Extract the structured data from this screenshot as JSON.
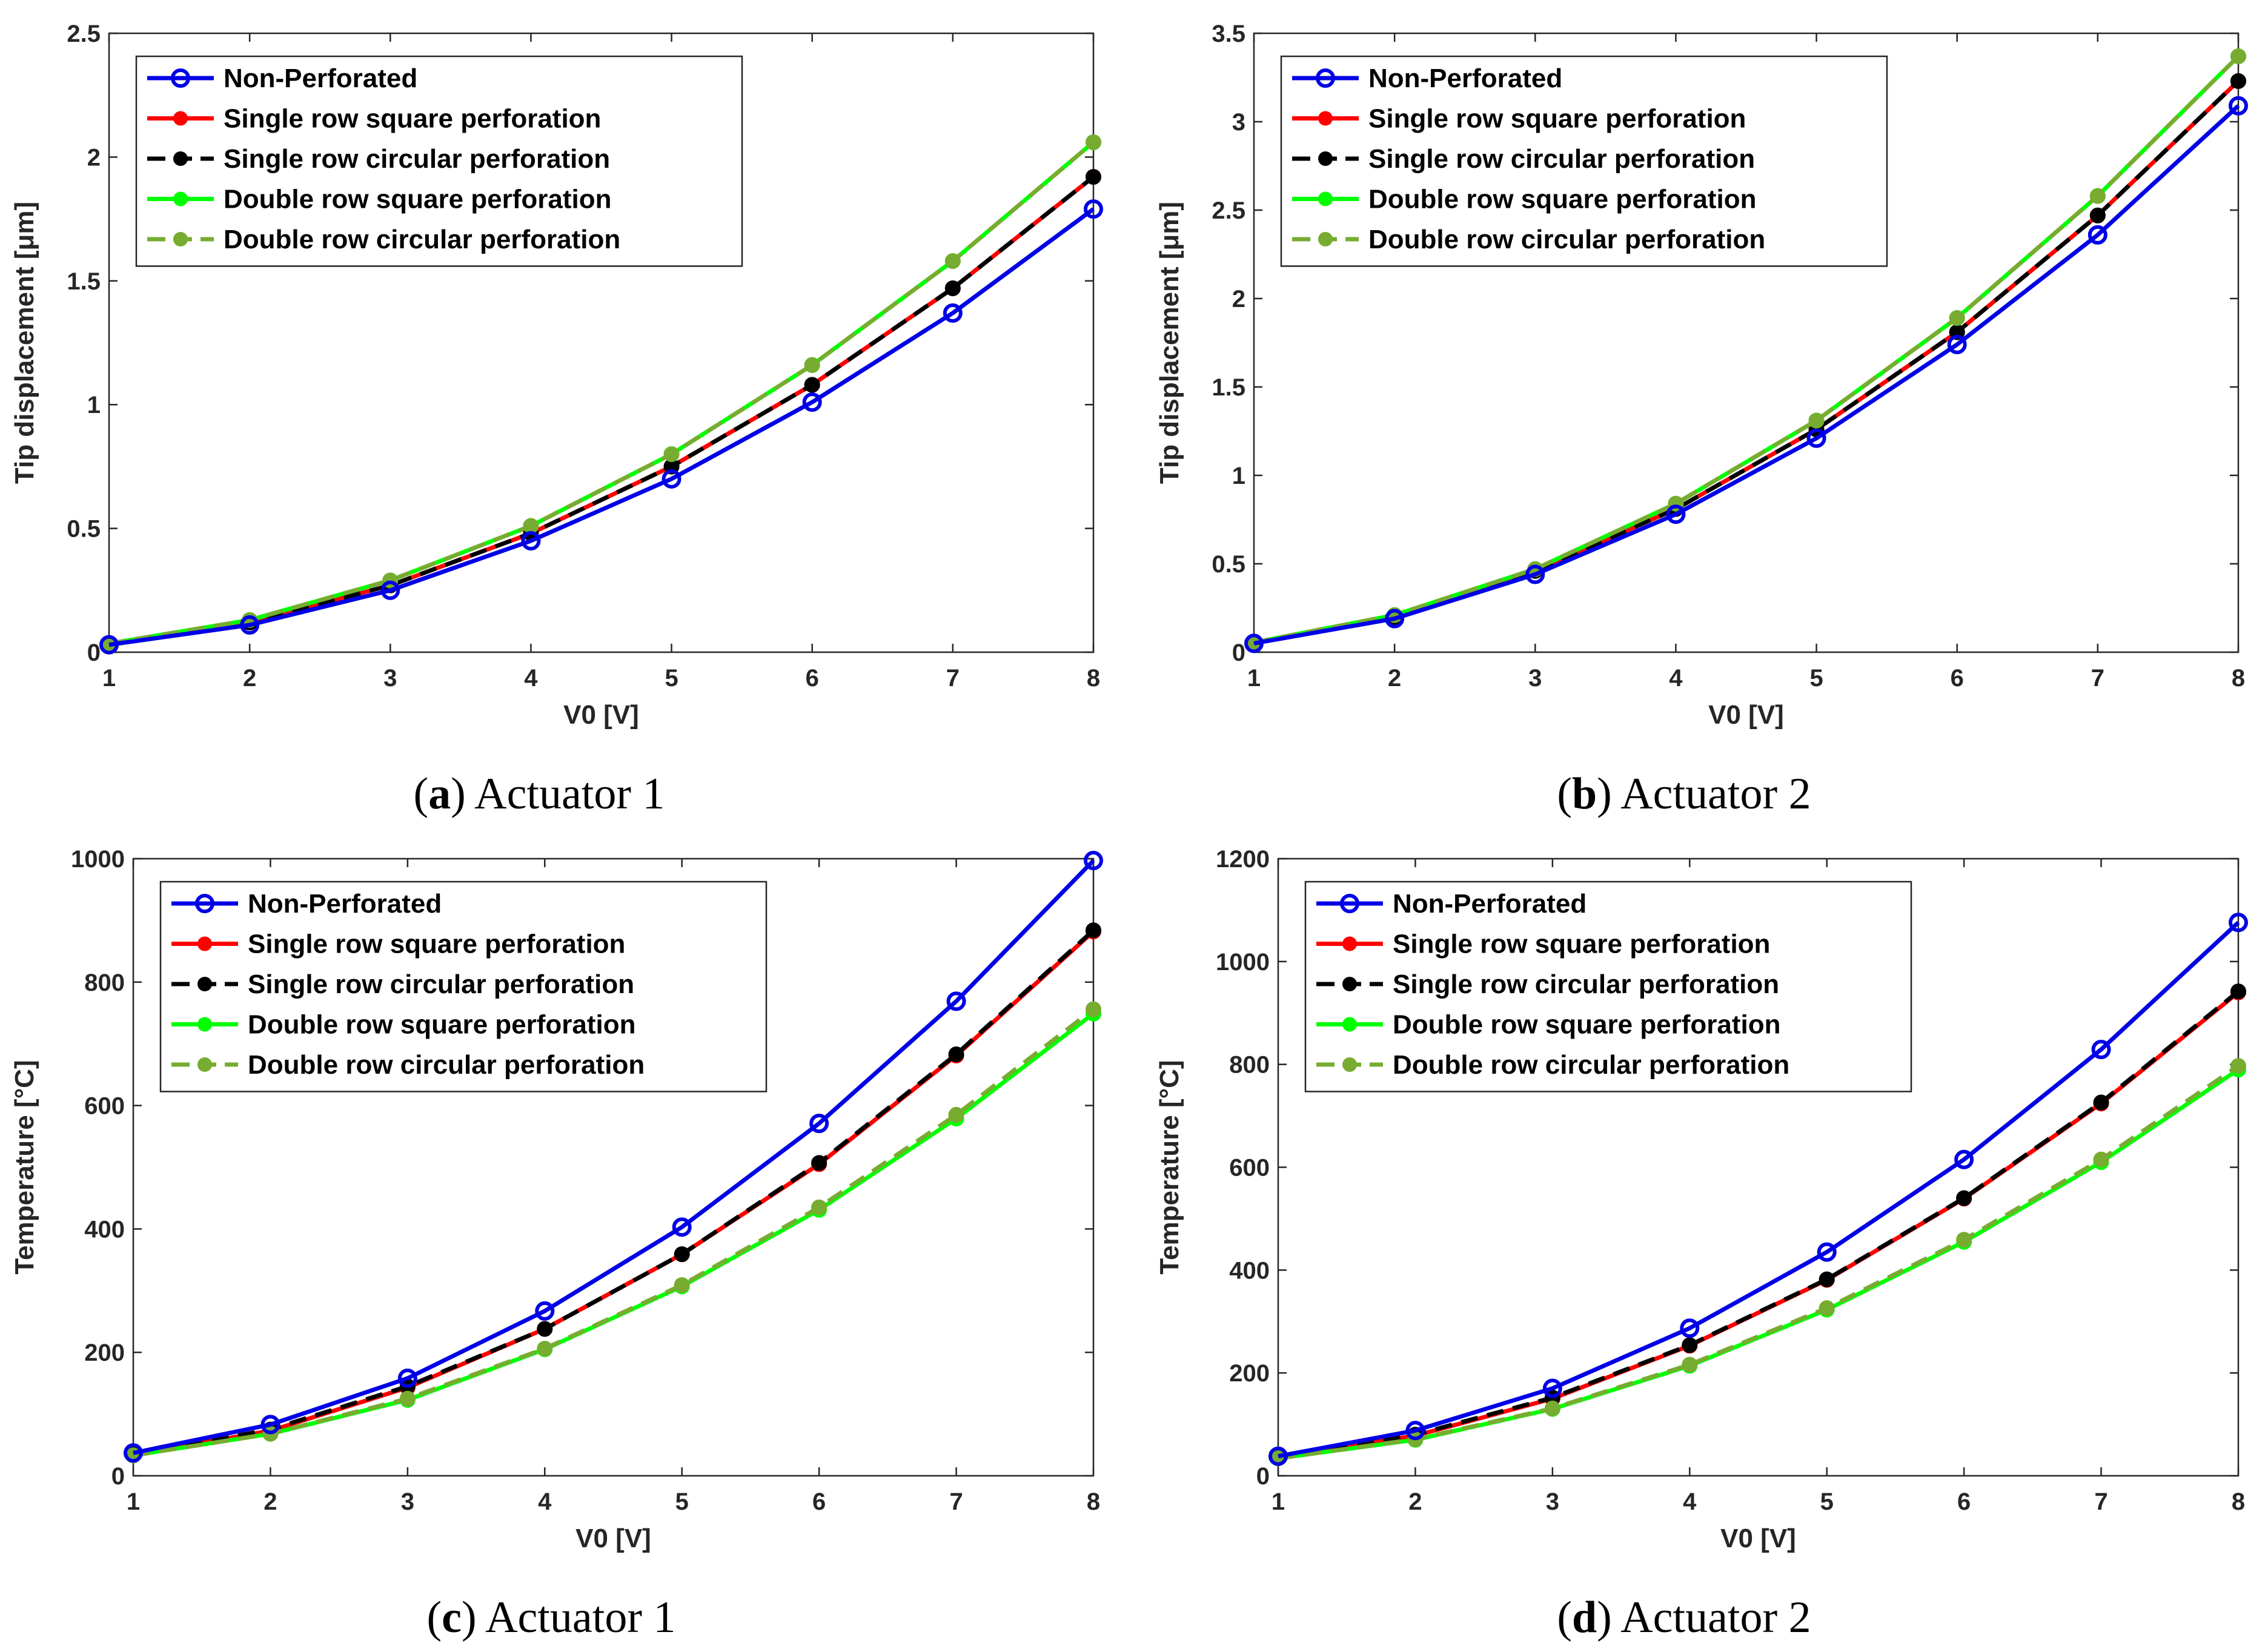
{
  "legend_labels": [
    "Non-Perforated",
    "Single row square perforation",
    "Single row circular perforation",
    "Double row square perforation",
    "Double row circular perforation"
  ],
  "series_colors": [
    "#0000e6",
    "#ff0000",
    "#000000",
    "#00ff00",
    "#77ac30"
  ],
  "chart_data": [
    {
      "type": "line",
      "caption_letter": "a",
      "caption_text": "Actuator 1",
      "xlabel": "V0 [V]",
      "ylabel": "Tip displacement [μm]",
      "xlim": [
        1,
        8
      ],
      "ylim": [
        0,
        2.5
      ],
      "xticks": [
        "1",
        "2",
        "3",
        "4",
        "5",
        "6",
        "7",
        "8"
      ],
      "yticks": [
        "0",
        "0.5",
        "1",
        "1.5",
        "2",
        "2.5"
      ],
      "legend": "top-left",
      "x": [
        1,
        2,
        3,
        4,
        5,
        6,
        7,
        8
      ],
      "series": [
        {
          "name": "Non-Perforated",
          "values": [
            0.03,
            0.11,
            0.25,
            0.45,
            0.7,
            1.01,
            1.37,
            1.79
          ]
        },
        {
          "name": "Single row square perforation",
          "values": [
            0.03,
            0.12,
            0.27,
            0.48,
            0.75,
            1.08,
            1.47,
            1.92
          ]
        },
        {
          "name": "Single row circular perforation",
          "values": [
            0.03,
            0.12,
            0.27,
            0.48,
            0.75,
            1.08,
            1.47,
            1.92
          ]
        },
        {
          "name": "Double row square perforation",
          "values": [
            0.035,
            0.13,
            0.29,
            0.51,
            0.8,
            1.16,
            1.58,
            2.06
          ]
        },
        {
          "name": "Double row circular perforation",
          "values": [
            0.035,
            0.13,
            0.29,
            0.51,
            0.8,
            1.16,
            1.58,
            2.06
          ]
        }
      ]
    },
    {
      "type": "line",
      "caption_letter": "b",
      "caption_text": "Actuator 2",
      "xlabel": "V0 [V]",
      "ylabel": "Tip displacement [μm]",
      "xlim": [
        1,
        8
      ],
      "ylim": [
        0,
        3.5
      ],
      "xticks": [
        "1",
        "2",
        "3",
        "4",
        "5",
        "6",
        "7",
        "8"
      ],
      "yticks": [
        "0",
        "0.5",
        "1",
        "1.5",
        "2",
        "2.5",
        "3",
        "3.5"
      ],
      "legend": "top-left",
      "x": [
        1,
        2,
        3,
        4,
        5,
        6,
        7,
        8
      ],
      "series": [
        {
          "name": "Non-Perforated",
          "values": [
            0.05,
            0.19,
            0.44,
            0.78,
            1.21,
            1.74,
            2.36,
            3.09
          ]
        },
        {
          "name": "Single row square perforation",
          "values": [
            0.05,
            0.2,
            0.46,
            0.81,
            1.26,
            1.81,
            2.47,
            3.23
          ]
        },
        {
          "name": "Single row circular perforation",
          "values": [
            0.05,
            0.2,
            0.46,
            0.81,
            1.26,
            1.81,
            2.47,
            3.23
          ]
        },
        {
          "name": "Double row square perforation",
          "values": [
            0.055,
            0.21,
            0.47,
            0.84,
            1.31,
            1.89,
            2.58,
            3.37
          ]
        },
        {
          "name": "Double row circular perforation",
          "values": [
            0.055,
            0.21,
            0.47,
            0.84,
            1.31,
            1.89,
            2.58,
            3.37
          ]
        }
      ]
    },
    {
      "type": "line",
      "caption_letter": "c",
      "caption_text": "Actuator 1",
      "xlabel": "V0 [V]",
      "ylabel": "Temperature [°C]",
      "xlim": [
        1,
        8
      ],
      "ylim": [
        0,
        1000
      ],
      "xticks": [
        "1",
        "2",
        "3",
        "4",
        "5",
        "6",
        "7",
        "8"
      ],
      "yticks": [
        "0",
        "200",
        "400",
        "600",
        "800",
        "1000"
      ],
      "legend": "top-left",
      "x": [
        1,
        2,
        3,
        4,
        5,
        6,
        7,
        8
      ],
      "series": [
        {
          "name": "Non-Perforated",
          "values": [
            37,
            83,
            158,
            267,
            403,
            571,
            769,
            997
          ]
        },
        {
          "name": "Single row square perforation",
          "values": [
            34,
            73,
            143,
            238,
            359,
            505,
            681,
            882
          ]
        },
        {
          "name": "Single row circular perforation",
          "values": [
            34,
            75,
            145,
            238,
            359,
            507,
            683,
            884
          ]
        },
        {
          "name": "Double row square perforation",
          "values": [
            33,
            68,
            123,
            205,
            307,
            431,
            579,
            749
          ]
        },
        {
          "name": "Double row circular perforation",
          "values": [
            33,
            68,
            125,
            206,
            309,
            435,
            585,
            756
          ]
        }
      ]
    },
    {
      "type": "line",
      "caption_letter": "d",
      "caption_text": "Actuator 2",
      "xlabel": "V0 [V]",
      "ylabel": "Temperature [°C]",
      "xlim": [
        1,
        8
      ],
      "ylim": [
        0,
        1200
      ],
      "xticks": [
        "1",
        "2",
        "3",
        "4",
        "5",
        "6",
        "7",
        "8"
      ],
      "yticks": [
        "0",
        "200",
        "400",
        "600",
        "800",
        "1000",
        "1200"
      ],
      "legend": "top-left",
      "x": [
        1,
        2,
        3,
        4,
        5,
        6,
        7,
        8
      ],
      "series": [
        {
          "name": "Non-Perforated",
          "values": [
            38,
            88,
            170,
            287,
            435,
            615,
            829,
            1076
          ]
        },
        {
          "name": "Single row square perforation",
          "values": [
            36,
            78,
            150,
            253,
            381,
            539,
            724,
            940
          ]
        },
        {
          "name": "Single row circular perforation",
          "values": [
            36,
            80,
            152,
            254,
            382,
            540,
            726,
            942
          ]
        },
        {
          "name": "Double row square perforation",
          "values": [
            34,
            70,
            130,
            214,
            323,
            455,
            610,
            790
          ]
        },
        {
          "name": "Double row circular perforation",
          "values": [
            34,
            71,
            131,
            216,
            326,
            459,
            615,
            797
          ]
        }
      ]
    }
  ]
}
